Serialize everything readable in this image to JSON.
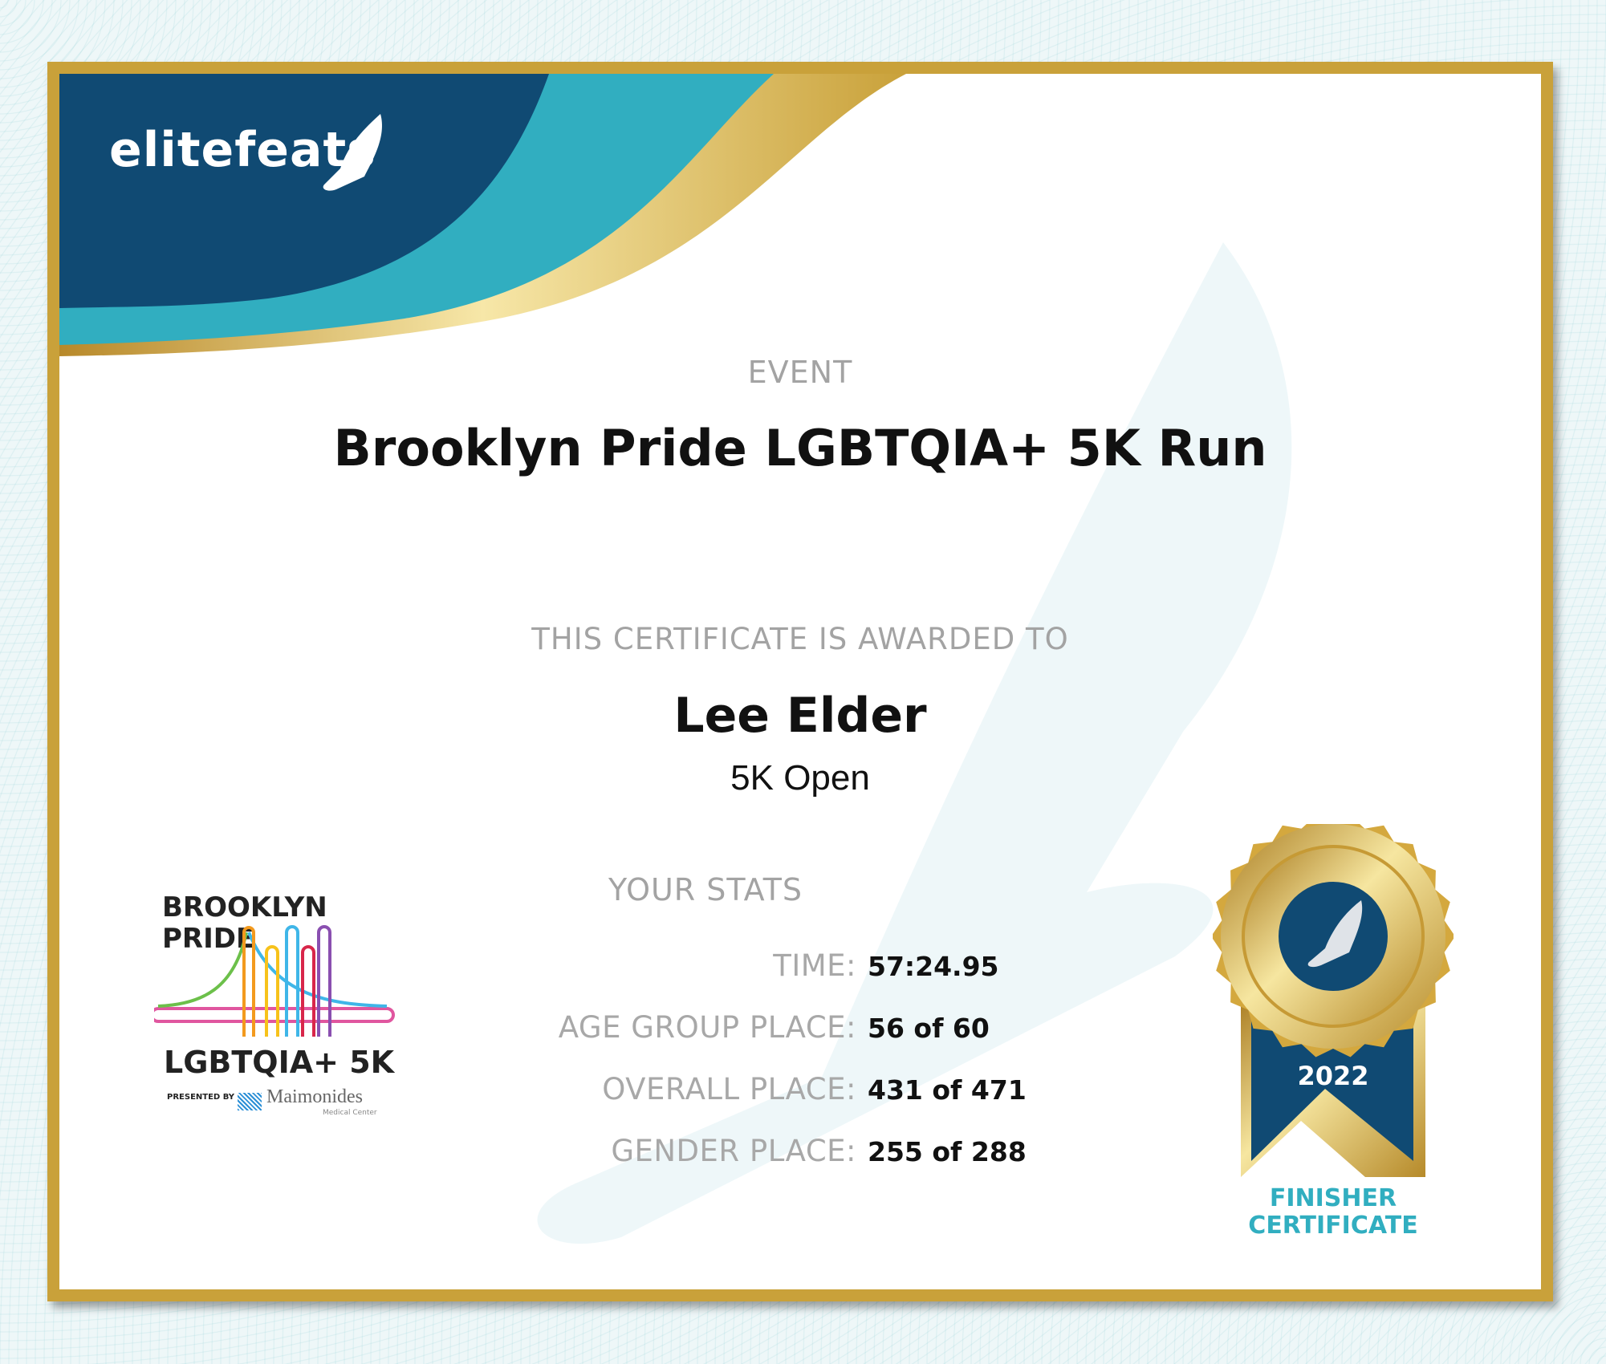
{
  "brand": {
    "name": "elitefeats",
    "colors": {
      "navy": "#104a73",
      "teal": "#31aec0",
      "gold": "#c9a13a"
    }
  },
  "event": {
    "label": "EVENT",
    "name": "Brooklyn Pride LGBTQIA+ 5K Run"
  },
  "award": {
    "label": "THIS CERTIFICATE IS AWARDED TO",
    "recipient": "Lee Elder",
    "division": "5K Open"
  },
  "stats": {
    "label": "YOUR STATS",
    "rows": [
      {
        "label": "TIME:",
        "value": "57:24.95"
      },
      {
        "label": "AGE GROUP PLACE:",
        "value": "56 of 60"
      },
      {
        "label": "OVERALL PLACE:",
        "value": "431 of 471"
      },
      {
        "label": "GENDER PLACE:",
        "value": "255 of 288"
      }
    ]
  },
  "event_logo": {
    "line1": "BROOKLYN",
    "line2": "PRIDE",
    "line3": "LGBTQIA+ 5K",
    "presented_by": "PRESENTED BY",
    "sponsor": "Maimonides",
    "sponsor_sub": "Medical Center"
  },
  "medal": {
    "year": "2022",
    "caption_line1": "FINISHER",
    "caption_line2": "CERTIFICATE"
  }
}
